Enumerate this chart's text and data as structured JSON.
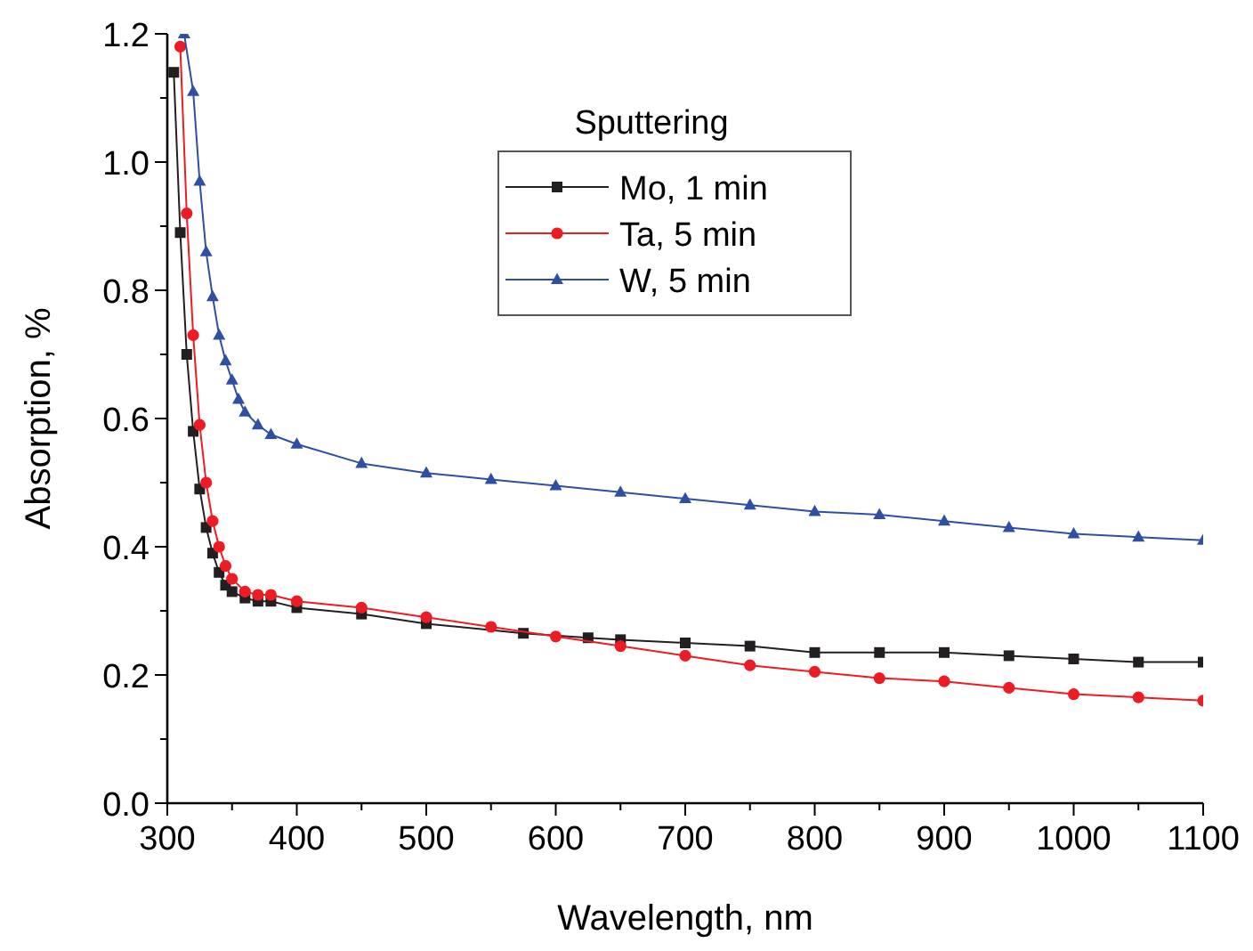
{
  "chart_data": {
    "type": "line",
    "xlabel": "Wavelength, nm",
    "ylabel": "Absorption, %",
    "legend_title": "Sputtering",
    "legend": "top",
    "grid": false,
    "line_style": "solid",
    "xlim": [
      300,
      1100
    ],
    "ylim": [
      0,
      1.2
    ],
    "xticks": [
      300,
      {
        "value": 350,
        "label": null
      },
      400,
      {
        "value": 450,
        "label": null
      },
      500,
      {
        "value": 550,
        "label": null
      },
      600,
      {
        "value": 650,
        "label": null
      },
      700,
      {
        "value": 750,
        "label": null
      },
      800,
      {
        "value": 850,
        "label": null
      },
      900,
      {
        "value": 950,
        "label": null
      },
      1000,
      {
        "value": 1050,
        "label": null
      },
      1100
    ],
    "yticks": [
      {
        "value": 0,
        "label": "0.0"
      },
      {
        "value": 0.1,
        "label": null
      },
      0.2,
      {
        "value": 0.3,
        "label": null
      },
      0.4,
      {
        "value": 0.5,
        "label": null
      },
      0.6,
      {
        "value": 0.7,
        "label": null
      },
      0.8,
      {
        "value": 0.9,
        "label": null
      },
      {
        "value": 1,
        "label": "1.0"
      },
      {
        "value": 1.1,
        "label": null
      },
      1.2
    ],
    "series": [
      {
        "name": "Mo, 1 min",
        "color": "#231f20",
        "marker": "square",
        "x": [
          305,
          310,
          315,
          320,
          325,
          330,
          335,
          340,
          345,
          350,
          360,
          370,
          380,
          400,
          450,
          500,
          575,
          625,
          650,
          700,
          750,
          800,
          850,
          900,
          950,
          1000,
          1050,
          1100
        ],
        "values": [
          1.14,
          0.89,
          0.7,
          0.58,
          0.49,
          0.43,
          0.39,
          0.36,
          0.34,
          0.33,
          0.32,
          0.315,
          0.315,
          0.305,
          0.295,
          0.28,
          0.265,
          0.258,
          0.255,
          0.25,
          0.245,
          0.235,
          0.235,
          0.235,
          0.23,
          0.225,
          0.22,
          0.22
        ]
      },
      {
        "name": "Ta, 5 min",
        "color": "#ed1c24",
        "marker": "circle",
        "x": [
          310,
          315,
          320,
          325,
          330,
          335,
          340,
          345,
          350,
          360,
          370,
          380,
          400,
          450,
          500,
          550,
          600,
          650,
          700,
          750,
          800,
          850,
          900,
          950,
          1000,
          1050,
          1100
        ],
        "values": [
          1.18,
          0.92,
          0.73,
          0.59,
          0.5,
          0.44,
          0.4,
          0.37,
          0.35,
          0.33,
          0.325,
          0.325,
          0.315,
          0.305,
          0.29,
          0.275,
          0.26,
          0.245,
          0.23,
          0.215,
          0.205,
          0.195,
          0.19,
          0.18,
          0.17,
          0.165,
          0.16
        ]
      },
      {
        "name": "W, 5 min",
        "color": "#2e4fa3",
        "marker": "triangle",
        "x": [
          313,
          320,
          325,
          330,
          335,
          340,
          345,
          350,
          355,
          360,
          370,
          380,
          400,
          450,
          500,
          550,
          600,
          650,
          700,
          750,
          800,
          850,
          900,
          950,
          1000,
          1050,
          1100
        ],
        "values": [
          1.2,
          1.11,
          0.97,
          0.86,
          0.79,
          0.73,
          0.69,
          0.66,
          0.63,
          0.61,
          0.59,
          0.575,
          0.56,
          0.53,
          0.515,
          0.505,
          0.495,
          0.485,
          0.475,
          0.465,
          0.455,
          0.45,
          0.44,
          0.43,
          0.42,
          0.415,
          0.41
        ]
      }
    ]
  }
}
